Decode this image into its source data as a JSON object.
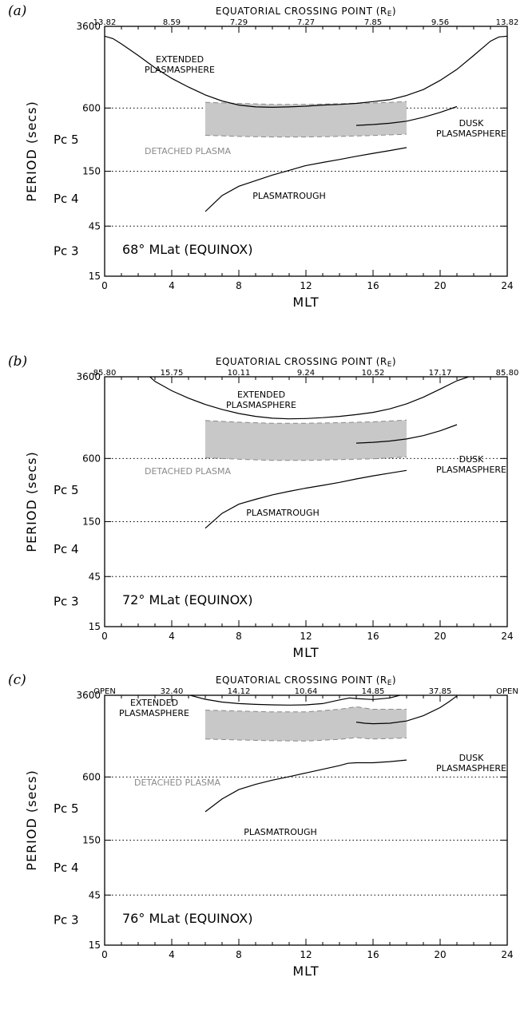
{
  "chart_data": [
    {
      "panel": "(a)",
      "type": "line",
      "xlabel": "MLT",
      "ylabel": "PERIOD (secs)",
      "xlim": [
        0,
        24
      ],
      "ylim": [
        15,
        3600
      ],
      "yscale": "log",
      "xticks": [
        "0",
        "4",
        "8",
        "12",
        "16",
        "20",
        "24"
      ],
      "yticks": [
        "15",
        "45",
        "150",
        "600",
        "3600"
      ],
      "top_axis": {
        "title": "EQUATORIAL CROSSING POINT (R",
        "title_sub": "E",
        "title_end": ")",
        "ticks": [
          "13.82",
          "8.59",
          "7.29",
          "7.27",
          "7.85",
          "9.56",
          "13.82"
        ]
      },
      "bands": [
        {
          "label": "Pc 5",
          "y": 300
        },
        {
          "label": "Pc 4",
          "y": 82
        },
        {
          "label": "Pc 3",
          "y": 26
        }
      ],
      "lat_label": "68° MLat (EQUINOX)",
      "annotations": {
        "extended": [
          "EXTENDED",
          "PLASMASPHERE"
        ],
        "dusk": [
          "DUSK",
          "PLASMASPHERE"
        ],
        "detached": "DETACHED PLASMA",
        "trough": "PLASMATROUGH"
      },
      "detached_band": {
        "x": [
          6,
          8,
          10,
          12,
          14,
          16,
          18
        ],
        "upper": [
          680,
          665,
          650,
          650,
          660,
          670,
          690
        ],
        "lower": [
          330,
          322,
          318,
          318,
          322,
          328,
          338
        ]
      },
      "series": [
        {
          "x": [
            0,
            0.5,
            1,
            2,
            3,
            4,
            5,
            6,
            7,
            8,
            9,
            10,
            11,
            12,
            13,
            14,
            15,
            16,
            17,
            18,
            19,
            20,
            21,
            22,
            23,
            23.5,
            24
          ],
          "y": [
            2900,
            2750,
            2450,
            1900,
            1450,
            1150,
            950,
            800,
            700,
            640,
            615,
            610,
            615,
            625,
            640,
            650,
            665,
            690,
            720,
            790,
            900,
            1100,
            1400,
            1900,
            2600,
            2850,
            2900
          ]
        },
        {
          "x": [
            15,
            16,
            17,
            18,
            19,
            20,
            21
          ],
          "y": [
            410,
            418,
            430,
            450,
            490,
            545,
            620
          ]
        },
        {
          "x": [
            6,
            7,
            8,
            9,
            10,
            11,
            12,
            13,
            14,
            15,
            16,
            17,
            18
          ],
          "y": [
            62,
            88,
            108,
            122,
            138,
            153,
            170,
            182,
            194,
            208,
            222,
            236,
            252
          ]
        }
      ]
    },
    {
      "panel": "(b)",
      "type": "line",
      "xlabel": "MLT",
      "ylabel": "PERIOD (secs)",
      "xlim": [
        0,
        24
      ],
      "ylim": [
        15,
        3600
      ],
      "yscale": "log",
      "xticks": [
        "0",
        "4",
        "8",
        "12",
        "16",
        "20",
        "24"
      ],
      "yticks": [
        "15",
        "45",
        "150",
        "600",
        "3600"
      ],
      "top_axis": {
        "title": "EQUATORIAL CROSSING POINT (R",
        "title_sub": "E",
        "title_end": ")",
        "ticks": [
          "85.80",
          "15.75",
          "10.11",
          "9.24",
          "10.52",
          "17.17",
          "85.80"
        ]
      },
      "bands": [
        {
          "label": "Pc 5",
          "y": 300
        },
        {
          "label": "Pc 4",
          "y": 82
        },
        {
          "label": "Pc 3",
          "y": 26
        }
      ],
      "lat_label": "72° MLat (EQUINOX)",
      "annotations": {
        "extended": [
          "EXTENDED",
          "PLASMASPHERE"
        ],
        "dusk": [
          "DUSK",
          "PLASMASPHERE"
        ],
        "detached": "DETACHED PLASMA",
        "trough": "PLASMATROUGH"
      },
      "detached_band": {
        "x": [
          6,
          8,
          10,
          12,
          14,
          16,
          18
        ],
        "upper": [
          1380,
          1330,
          1300,
          1300,
          1315,
          1340,
          1390
        ],
        "lower": [
          610,
          590,
          575,
          575,
          585,
          595,
          620
        ]
      },
      "series": [
        {
          "x": [
            2.7,
            3,
            4,
            5,
            6,
            7,
            8,
            9,
            10,
            11,
            12,
            13,
            14,
            15,
            16,
            17,
            18,
            19,
            20,
            21,
            21.7
          ],
          "y": [
            3600,
            3250,
            2650,
            2250,
            1960,
            1760,
            1610,
            1510,
            1450,
            1430,
            1440,
            1470,
            1510,
            1570,
            1650,
            1780,
            1990,
            2300,
            2750,
            3300,
            3600
          ]
        },
        {
          "x": [
            15,
            16,
            17,
            18,
            19,
            20,
            21
          ],
          "y": [
            840,
            855,
            880,
            920,
            990,
            1100,
            1260
          ]
        },
        {
          "x": [
            6,
            7,
            8,
            9,
            10,
            11,
            12,
            13,
            14,
            15,
            16,
            17,
            18
          ],
          "y": [
            130,
            180,
            220,
            245,
            270,
            292,
            313,
            333,
            355,
            383,
            410,
            435,
            462
          ]
        }
      ]
    },
    {
      "panel": "(c)",
      "type": "line",
      "xlabel": "MLT",
      "ylabel": "PERIOD (secs)",
      "xlim": [
        0,
        24
      ],
      "ylim": [
        15,
        3600
      ],
      "yscale": "log",
      "xticks": [
        "0",
        "4",
        "8",
        "12",
        "16",
        "20",
        "24"
      ],
      "yticks": [
        "15",
        "45",
        "150",
        "600",
        "3600"
      ],
      "top_axis": {
        "title": "EQUATORIAL CROSSING POINT (R",
        "title_sub": "E",
        "title_end": ")",
        "ticks": [
          "OPEN",
          "32.40",
          "14.12",
          "10.64",
          "14.85",
          "37.85",
          "OPEN"
        ]
      },
      "bands": [
        {
          "label": "Pc 5",
          "y": 300
        },
        {
          "label": "Pc 4",
          "y": 82
        },
        {
          "label": "Pc 3",
          "y": 26
        }
      ],
      "lat_label": "76° MLat (EQUINOX)",
      "annotations": {
        "extended": [
          "EXTENDED",
          "PLASMASPHERE"
        ],
        "dusk": [
          "DUSK",
          "PLASMASPHERE"
        ],
        "detached": "DETACHED PLASMA",
        "trough": "PLASMATROUGH"
      },
      "detached_band": {
        "x": [
          6,
          8,
          10,
          12,
          14,
          15,
          16,
          18
        ],
        "upper": [
          2600,
          2550,
          2500,
          2500,
          2650,
          2800,
          2650,
          2650
        ],
        "lower": [
          1380,
          1350,
          1330,
          1320,
          1370,
          1420,
          1380,
          1410
        ]
      },
      "series": [
        {
          "x": [
            5.1,
            6,
            7,
            8,
            9,
            10,
            11,
            12,
            13,
            14,
            14.6,
            15,
            16,
            17,
            17.6
          ],
          "y": [
            3600,
            3300,
            3100,
            3000,
            2950,
            2920,
            2900,
            2920,
            3000,
            3250,
            3400,
            3350,
            3280,
            3400,
            3600
          ]
        },
        {
          "x": [
            15,
            15.5,
            16,
            17,
            18,
            19,
            20,
            20.5,
            21
          ],
          "y": [
            2000,
            1950,
            1930,
            1950,
            2050,
            2300,
            2750,
            3100,
            3550
          ]
        },
        {
          "x": [
            6,
            7,
            8,
            9,
            10,
            11,
            12,
            13,
            14,
            14.5,
            15,
            16,
            17,
            18
          ],
          "y": [
            280,
            370,
            455,
            510,
            560,
            605,
            655,
            710,
            770,
            810,
            820,
            820,
            840,
            870
          ]
        }
      ]
    }
  ]
}
